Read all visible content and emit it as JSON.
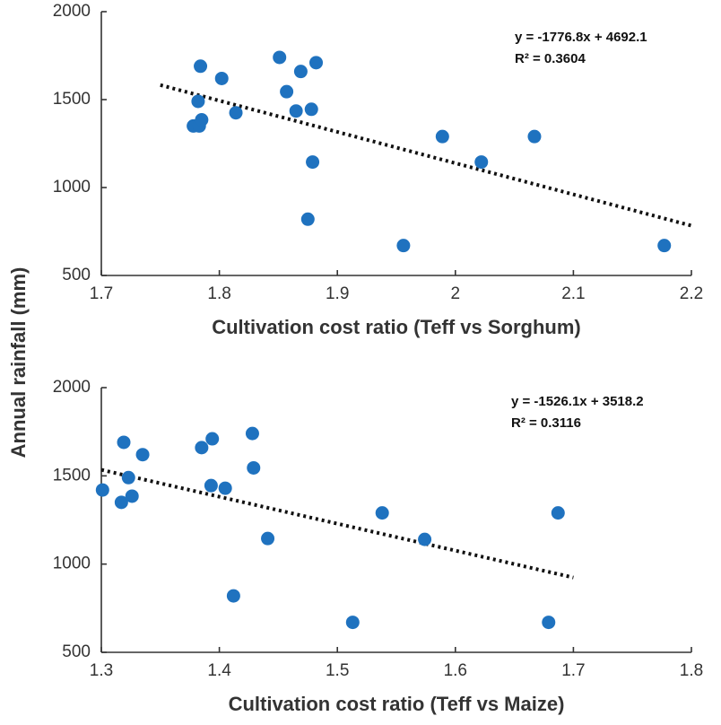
{
  "shared_ylabel": "Annual rainfall (mm)",
  "colors": {
    "point": "#1f72bf",
    "trend": "#111111",
    "axis": "#333333"
  },
  "chart_data": [
    {
      "type": "scatter",
      "xlabel": "Cultivation cost ratio (Teff vs Sorghum)",
      "ylabel": "Annual rainfall (mm)",
      "xlim": [
        1.7,
        2.2
      ],
      "ylim": [
        500,
        2000
      ],
      "xticks": [
        1.7,
        1.8,
        1.9,
        2,
        2.1,
        2.2
      ],
      "xtick_labels": [
        "1.7",
        "1.8",
        "1.9",
        "2",
        "2.1",
        "2.2"
      ],
      "yticks": [
        500,
        1000,
        1500,
        2000
      ],
      "ytick_labels": [
        "500",
        "1000",
        "1500",
        "2000"
      ],
      "points": [
        {
          "x": 1.778,
          "y": 1350
        },
        {
          "x": 1.782,
          "y": 1490
        },
        {
          "x": 1.783,
          "y": 1350
        },
        {
          "x": 1.784,
          "y": 1690
        },
        {
          "x": 1.785,
          "y": 1385
        },
        {
          "x": 1.802,
          "y": 1620
        },
        {
          "x": 1.814,
          "y": 1425
        },
        {
          "x": 1.851,
          "y": 1740
        },
        {
          "x": 1.857,
          "y": 1545
        },
        {
          "x": 1.865,
          "y": 1435
        },
        {
          "x": 1.869,
          "y": 1660
        },
        {
          "x": 1.875,
          "y": 820
        },
        {
          "x": 1.878,
          "y": 1445
        },
        {
          "x": 1.879,
          "y": 1145
        },
        {
          "x": 1.882,
          "y": 1710
        },
        {
          "x": 1.956,
          "y": 670
        },
        {
          "x": 1.989,
          "y": 1290
        },
        {
          "x": 2.022,
          "y": 1145
        },
        {
          "x": 2.067,
          "y": 1290
        },
        {
          "x": 2.177,
          "y": 670
        }
      ],
      "trendline": {
        "slope": -1776.8,
        "intercept": 4692.1,
        "x_from": 1.75,
        "x_to": 2.2
      },
      "annotation": {
        "equation": "y = -1776.8x + 4692.1",
        "r2": "R² = 0.3604"
      }
    },
    {
      "type": "scatter",
      "xlabel": "Cultivation cost ratio (Teff vs Maize)",
      "ylabel": "Annual rainfall (mm)",
      "xlim": [
        1.3,
        1.8
      ],
      "ylim": [
        500,
        2000
      ],
      "xticks": [
        1.3,
        1.4,
        1.5,
        1.6,
        1.7,
        1.8
      ],
      "xtick_labels": [
        "1.3",
        "1.4",
        "1.5",
        "1.6",
        "1.7",
        "1.8"
      ],
      "yticks": [
        500,
        1000,
        1500,
        2000
      ],
      "ytick_labels": [
        "500",
        "1000",
        "1500",
        "2000"
      ],
      "points": [
        {
          "x": 1.301,
          "y": 1420
        },
        {
          "x": 1.317,
          "y": 1350
        },
        {
          "x": 1.319,
          "y": 1690
        },
        {
          "x": 1.323,
          "y": 1490
        },
        {
          "x": 1.326,
          "y": 1385
        },
        {
          "x": 1.335,
          "y": 1620
        },
        {
          "x": 1.385,
          "y": 1660
        },
        {
          "x": 1.393,
          "y": 1445
        },
        {
          "x": 1.394,
          "y": 1710
        },
        {
          "x": 1.405,
          "y": 1430
        },
        {
          "x": 1.412,
          "y": 820
        },
        {
          "x": 1.428,
          "y": 1740
        },
        {
          "x": 1.429,
          "y": 1545
        },
        {
          "x": 1.441,
          "y": 1145
        },
        {
          "x": 1.513,
          "y": 670
        },
        {
          "x": 1.538,
          "y": 1290
        },
        {
          "x": 1.574,
          "y": 1140
        },
        {
          "x": 1.679,
          "y": 670
        },
        {
          "x": 1.687,
          "y": 1290
        }
      ],
      "trendline": {
        "slope": -1526.1,
        "intercept": 3518.2,
        "x_from": 1.3,
        "x_to": 1.7
      },
      "annotation": {
        "equation": "y = -1526.1x + 3518.2",
        "r2": "R² = 0.3116"
      }
    }
  ]
}
